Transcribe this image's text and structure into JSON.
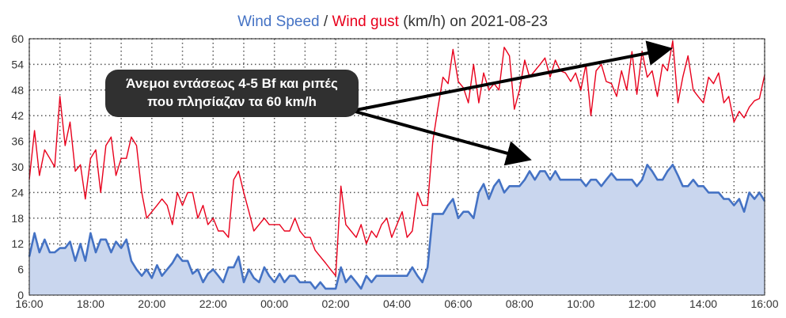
{
  "chart_data": {
    "type": "line",
    "title": {
      "part1": "Wind Speed",
      "sep": " / ",
      "part2": "Wind gust",
      "part3": " (km/h) on 2021-08-23"
    },
    "colors": {
      "speed": "#4472c4",
      "speed_fill": "#c9d6ee",
      "gust": "#e8001c",
      "grid": "#555555",
      "callout": "#303030"
    },
    "xlim": [
      0,
      24
    ],
    "ylim": [
      0,
      60
    ],
    "x_ticks": [
      {
        "v": 0,
        "label": "16:00"
      },
      {
        "v": 2,
        "label": "18:00"
      },
      {
        "v": 4,
        "label": "20:00"
      },
      {
        "v": 6,
        "label": "22:00"
      },
      {
        "v": 8,
        "label": "00:00"
      },
      {
        "v": 10,
        "label": "02:00"
      },
      {
        "v": 12,
        "label": "04:00"
      },
      {
        "v": 14,
        "label": "06:00"
      },
      {
        "v": 16,
        "label": "08:00"
      },
      {
        "v": 18,
        "label": "10:00"
      },
      {
        "v": 20,
        "label": "12:00"
      },
      {
        "v": 22,
        "label": "14:00"
      },
      {
        "v": 24,
        "label": "16:00"
      }
    ],
    "y_ticks": [
      {
        "v": 0,
        "label": "0"
      },
      {
        "v": 6,
        "label": "6"
      },
      {
        "v": 12,
        "label": "12"
      },
      {
        "v": 18,
        "label": "18"
      },
      {
        "v": 24,
        "label": "24"
      },
      {
        "v": 30,
        "label": "30"
      },
      {
        "v": 36,
        "label": "36"
      },
      {
        "v": 42,
        "label": "42"
      },
      {
        "v": 48,
        "label": "48"
      },
      {
        "v": 54,
        "label": "54"
      },
      {
        "v": 60,
        "label": "60"
      }
    ],
    "series": [
      {
        "name": "Wind Speed",
        "points": [
          [
            0,
            9
          ],
          [
            0.17,
            14.5
          ],
          [
            0.33,
            10
          ],
          [
            0.5,
            13
          ],
          [
            0.67,
            10
          ],
          [
            0.83,
            10
          ],
          [
            1,
            11
          ],
          [
            1.17,
            11
          ],
          [
            1.33,
            12.5
          ],
          [
            1.5,
            8
          ],
          [
            1.67,
            12
          ],
          [
            1.83,
            8
          ],
          [
            2,
            14.5
          ],
          [
            2.17,
            10
          ],
          [
            2.33,
            13
          ],
          [
            2.5,
            13
          ],
          [
            2.67,
            10
          ],
          [
            2.83,
            12.5
          ],
          [
            3,
            11
          ],
          [
            3.17,
            13
          ],
          [
            3.33,
            8
          ],
          [
            3.5,
            6
          ],
          [
            3.67,
            4.5
          ],
          [
            3.83,
            6
          ],
          [
            4,
            4
          ],
          [
            4.17,
            7
          ],
          [
            4.33,
            4.5
          ],
          [
            4.5,
            6
          ],
          [
            4.67,
            7.5
          ],
          [
            4.83,
            9.5
          ],
          [
            5,
            8
          ],
          [
            5.17,
            8
          ],
          [
            5.33,
            5
          ],
          [
            5.5,
            6
          ],
          [
            5.67,
            3
          ],
          [
            5.83,
            5
          ],
          [
            6,
            6
          ],
          [
            6.17,
            4.5
          ],
          [
            6.33,
            3
          ],
          [
            6.5,
            6.5
          ],
          [
            6.67,
            6.5
          ],
          [
            6.83,
            9
          ],
          [
            7,
            3
          ],
          [
            7.17,
            6
          ],
          [
            7.33,
            4
          ],
          [
            7.5,
            3
          ],
          [
            7.67,
            6.5
          ],
          [
            7.83,
            4.5
          ],
          [
            8,
            3
          ],
          [
            8.17,
            5
          ],
          [
            8.33,
            3
          ],
          [
            8.5,
            4.5
          ],
          [
            8.67,
            4.5
          ],
          [
            8.83,
            3
          ],
          [
            9,
            3
          ],
          [
            9.17,
            3
          ],
          [
            9.33,
            1.5
          ],
          [
            9.5,
            3
          ],
          [
            9.67,
            1.5
          ],
          [
            9.83,
            1.5
          ],
          [
            10,
            1.5
          ],
          [
            10.17,
            6.5
          ],
          [
            10.33,
            3
          ],
          [
            10.5,
            4.5
          ],
          [
            10.67,
            3
          ],
          [
            10.83,
            1.5
          ],
          [
            11,
            4.5
          ],
          [
            11.17,
            3
          ],
          [
            11.33,
            4.5
          ],
          [
            11.5,
            4.5
          ],
          [
            11.67,
            4.5
          ],
          [
            11.83,
            4.5
          ],
          [
            12,
            4.5
          ],
          [
            12.17,
            4.5
          ],
          [
            12.33,
            4.5
          ],
          [
            12.5,
            6.5
          ],
          [
            12.67,
            4.5
          ],
          [
            12.83,
            3
          ],
          [
            13,
            6.5
          ],
          [
            13.17,
            19
          ],
          [
            13.33,
            19
          ],
          [
            13.5,
            19
          ],
          [
            13.67,
            21
          ],
          [
            13.83,
            22.5
          ],
          [
            14,
            18
          ],
          [
            14.17,
            19.5
          ],
          [
            14.33,
            19.5
          ],
          [
            14.5,
            18
          ],
          [
            14.67,
            24
          ],
          [
            14.83,
            26
          ],
          [
            15,
            22.5
          ],
          [
            15.17,
            25.5
          ],
          [
            15.33,
            27
          ],
          [
            15.5,
            24
          ],
          [
            15.67,
            25.5
          ],
          [
            15.83,
            25.5
          ],
          [
            16,
            25.5
          ],
          [
            16.17,
            27
          ],
          [
            16.33,
            29
          ],
          [
            16.5,
            27
          ],
          [
            16.67,
            29
          ],
          [
            16.83,
            29
          ],
          [
            17,
            27
          ],
          [
            17.17,
            29
          ],
          [
            17.33,
            27
          ],
          [
            17.5,
            27
          ],
          [
            17.67,
            27
          ],
          [
            17.83,
            27
          ],
          [
            18,
            27
          ],
          [
            18.17,
            25.5
          ],
          [
            18.33,
            27
          ],
          [
            18.5,
            27
          ],
          [
            18.67,
            25.5
          ],
          [
            18.83,
            27
          ],
          [
            19,
            28.5
          ],
          [
            19.17,
            27
          ],
          [
            19.33,
            27
          ],
          [
            19.5,
            27
          ],
          [
            19.67,
            27
          ],
          [
            19.83,
            25.5
          ],
          [
            20,
            27
          ],
          [
            20.17,
            30.5
          ],
          [
            20.33,
            29
          ],
          [
            20.5,
            27
          ],
          [
            20.67,
            27
          ],
          [
            20.83,
            29
          ],
          [
            21,
            30.5
          ],
          [
            21.17,
            28
          ],
          [
            21.33,
            25.5
          ],
          [
            21.5,
            25.5
          ],
          [
            21.67,
            27
          ],
          [
            21.83,
            25.5
          ],
          [
            22,
            25.5
          ],
          [
            22.17,
            24
          ],
          [
            22.33,
            24
          ],
          [
            22.5,
            24
          ],
          [
            22.67,
            22.5
          ],
          [
            22.83,
            22.5
          ],
          [
            23,
            21
          ],
          [
            23.17,
            22.5
          ],
          [
            23.33,
            19.5
          ],
          [
            23.5,
            24
          ],
          [
            23.67,
            22.5
          ],
          [
            23.83,
            24
          ],
          [
            24,
            22
          ]
        ]
      },
      {
        "name": "Wind gust",
        "points": [
          [
            0,
            27
          ],
          [
            0.17,
            38.5
          ],
          [
            0.33,
            28
          ],
          [
            0.5,
            34
          ],
          [
            0.67,
            32
          ],
          [
            0.83,
            30
          ],
          [
            1,
            46.5
          ],
          [
            1.17,
            35
          ],
          [
            1.33,
            40.5
          ],
          [
            1.5,
            29
          ],
          [
            1.67,
            30.5
          ],
          [
            1.83,
            22.5
          ],
          [
            2,
            32
          ],
          [
            2.17,
            34
          ],
          [
            2.33,
            24
          ],
          [
            2.5,
            35
          ],
          [
            2.67,
            37
          ],
          [
            2.83,
            28
          ],
          [
            3,
            32
          ],
          [
            3.17,
            32
          ],
          [
            3.33,
            37
          ],
          [
            3.5,
            35
          ],
          [
            3.67,
            24
          ],
          [
            3.83,
            18
          ],
          [
            4,
            19.5
          ],
          [
            4.17,
            21
          ],
          [
            4.33,
            22.5
          ],
          [
            4.5,
            21
          ],
          [
            4.67,
            16.5
          ],
          [
            4.83,
            24
          ],
          [
            5,
            21
          ],
          [
            5.17,
            24
          ],
          [
            5.33,
            24
          ],
          [
            5.5,
            18
          ],
          [
            5.67,
            21
          ],
          [
            5.83,
            16.5
          ],
          [
            6,
            18
          ],
          [
            6.17,
            15
          ],
          [
            6.33,
            15
          ],
          [
            6.5,
            13.5
          ],
          [
            6.67,
            27
          ],
          [
            6.83,
            29
          ],
          [
            7,
            24
          ],
          [
            7.17,
            19.5
          ],
          [
            7.33,
            15
          ],
          [
            7.5,
            16.5
          ],
          [
            7.67,
            18
          ],
          [
            7.83,
            16.5
          ],
          [
            8,
            16.5
          ],
          [
            8.17,
            16.5
          ],
          [
            8.33,
            15
          ],
          [
            8.5,
            15
          ],
          [
            8.67,
            18
          ],
          [
            8.83,
            15
          ],
          [
            9,
            13.5
          ],
          [
            9.17,
            13.5
          ],
          [
            9.33,
            10.5
          ],
          [
            9.5,
            9
          ],
          [
            9.67,
            7.5
          ],
          [
            9.83,
            6
          ],
          [
            10,
            4.5
          ],
          [
            10.17,
            25.5
          ],
          [
            10.33,
            16.5
          ],
          [
            10.5,
            15
          ],
          [
            10.67,
            13.5
          ],
          [
            10.83,
            16.5
          ],
          [
            11,
            12
          ],
          [
            11.17,
            15
          ],
          [
            11.33,
            13.5
          ],
          [
            11.5,
            16.5
          ],
          [
            11.67,
            18
          ],
          [
            11.83,
            13.5
          ],
          [
            12,
            16.5
          ],
          [
            12.17,
            19.5
          ],
          [
            12.33,
            13.5
          ],
          [
            12.5,
            15
          ],
          [
            12.67,
            24
          ],
          [
            12.83,
            21
          ],
          [
            13,
            21
          ],
          [
            13.17,
            36
          ],
          [
            13.33,
            43.5
          ],
          [
            13.5,
            51
          ],
          [
            13.67,
            49.5
          ],
          [
            13.83,
            57.5
          ],
          [
            14,
            50
          ],
          [
            14.17,
            48.5
          ],
          [
            14.33,
            45
          ],
          [
            14.5,
            54
          ],
          [
            14.67,
            45
          ],
          [
            14.83,
            52
          ],
          [
            15,
            48
          ],
          [
            15.17,
            49.5
          ],
          [
            15.33,
            48
          ],
          [
            15.5,
            58
          ],
          [
            15.67,
            56
          ],
          [
            15.83,
            43.5
          ],
          [
            16,
            48
          ],
          [
            16.17,
            55
          ],
          [
            16.33,
            51
          ],
          [
            16.5,
            52.5
          ],
          [
            16.67,
            54
          ],
          [
            16.83,
            55.5
          ],
          [
            17,
            51
          ],
          [
            17.17,
            55
          ],
          [
            17.33,
            52.5
          ],
          [
            17.5,
            52
          ],
          [
            17.67,
            50
          ],
          [
            17.83,
            52
          ],
          [
            18,
            48
          ],
          [
            18.17,
            54
          ],
          [
            18.33,
            42
          ],
          [
            18.5,
            52.5
          ],
          [
            18.67,
            54
          ],
          [
            18.83,
            50
          ],
          [
            19,
            49.5
          ],
          [
            19.17,
            46.5
          ],
          [
            19.33,
            52.5
          ],
          [
            19.5,
            48
          ],
          [
            19.67,
            57
          ],
          [
            19.83,
            47
          ],
          [
            20,
            57
          ],
          [
            20.17,
            51
          ],
          [
            20.33,
            52.5
          ],
          [
            20.5,
            46.5
          ],
          [
            20.67,
            54
          ],
          [
            20.83,
            52.5
          ],
          [
            21,
            59.5
          ],
          [
            21.17,
            45
          ],
          [
            21.33,
            51
          ],
          [
            21.5,
            56
          ],
          [
            21.67,
            48
          ],
          [
            21.83,
            46.5
          ],
          [
            22,
            45
          ],
          [
            22.17,
            51
          ],
          [
            22.33,
            49.5
          ],
          [
            22.5,
            52
          ],
          [
            22.67,
            45
          ],
          [
            22.83,
            46.5
          ],
          [
            23,
            40.5
          ],
          [
            23.17,
            43
          ],
          [
            23.33,
            41.5
          ],
          [
            23.5,
            44
          ],
          [
            23.67,
            45.5
          ],
          [
            23.83,
            46
          ],
          [
            24,
            51.5
          ]
        ]
      }
    ],
    "annotation": {
      "line1": "Άνεμοι εντάσεως 4-5 Bf και ριπές",
      "line2": "που πλησίαζαν τα 60 km/h",
      "arrow_targets": [
        [
          20.8,
          57.5
        ],
        [
          16.2,
          32
        ]
      ]
    }
  }
}
